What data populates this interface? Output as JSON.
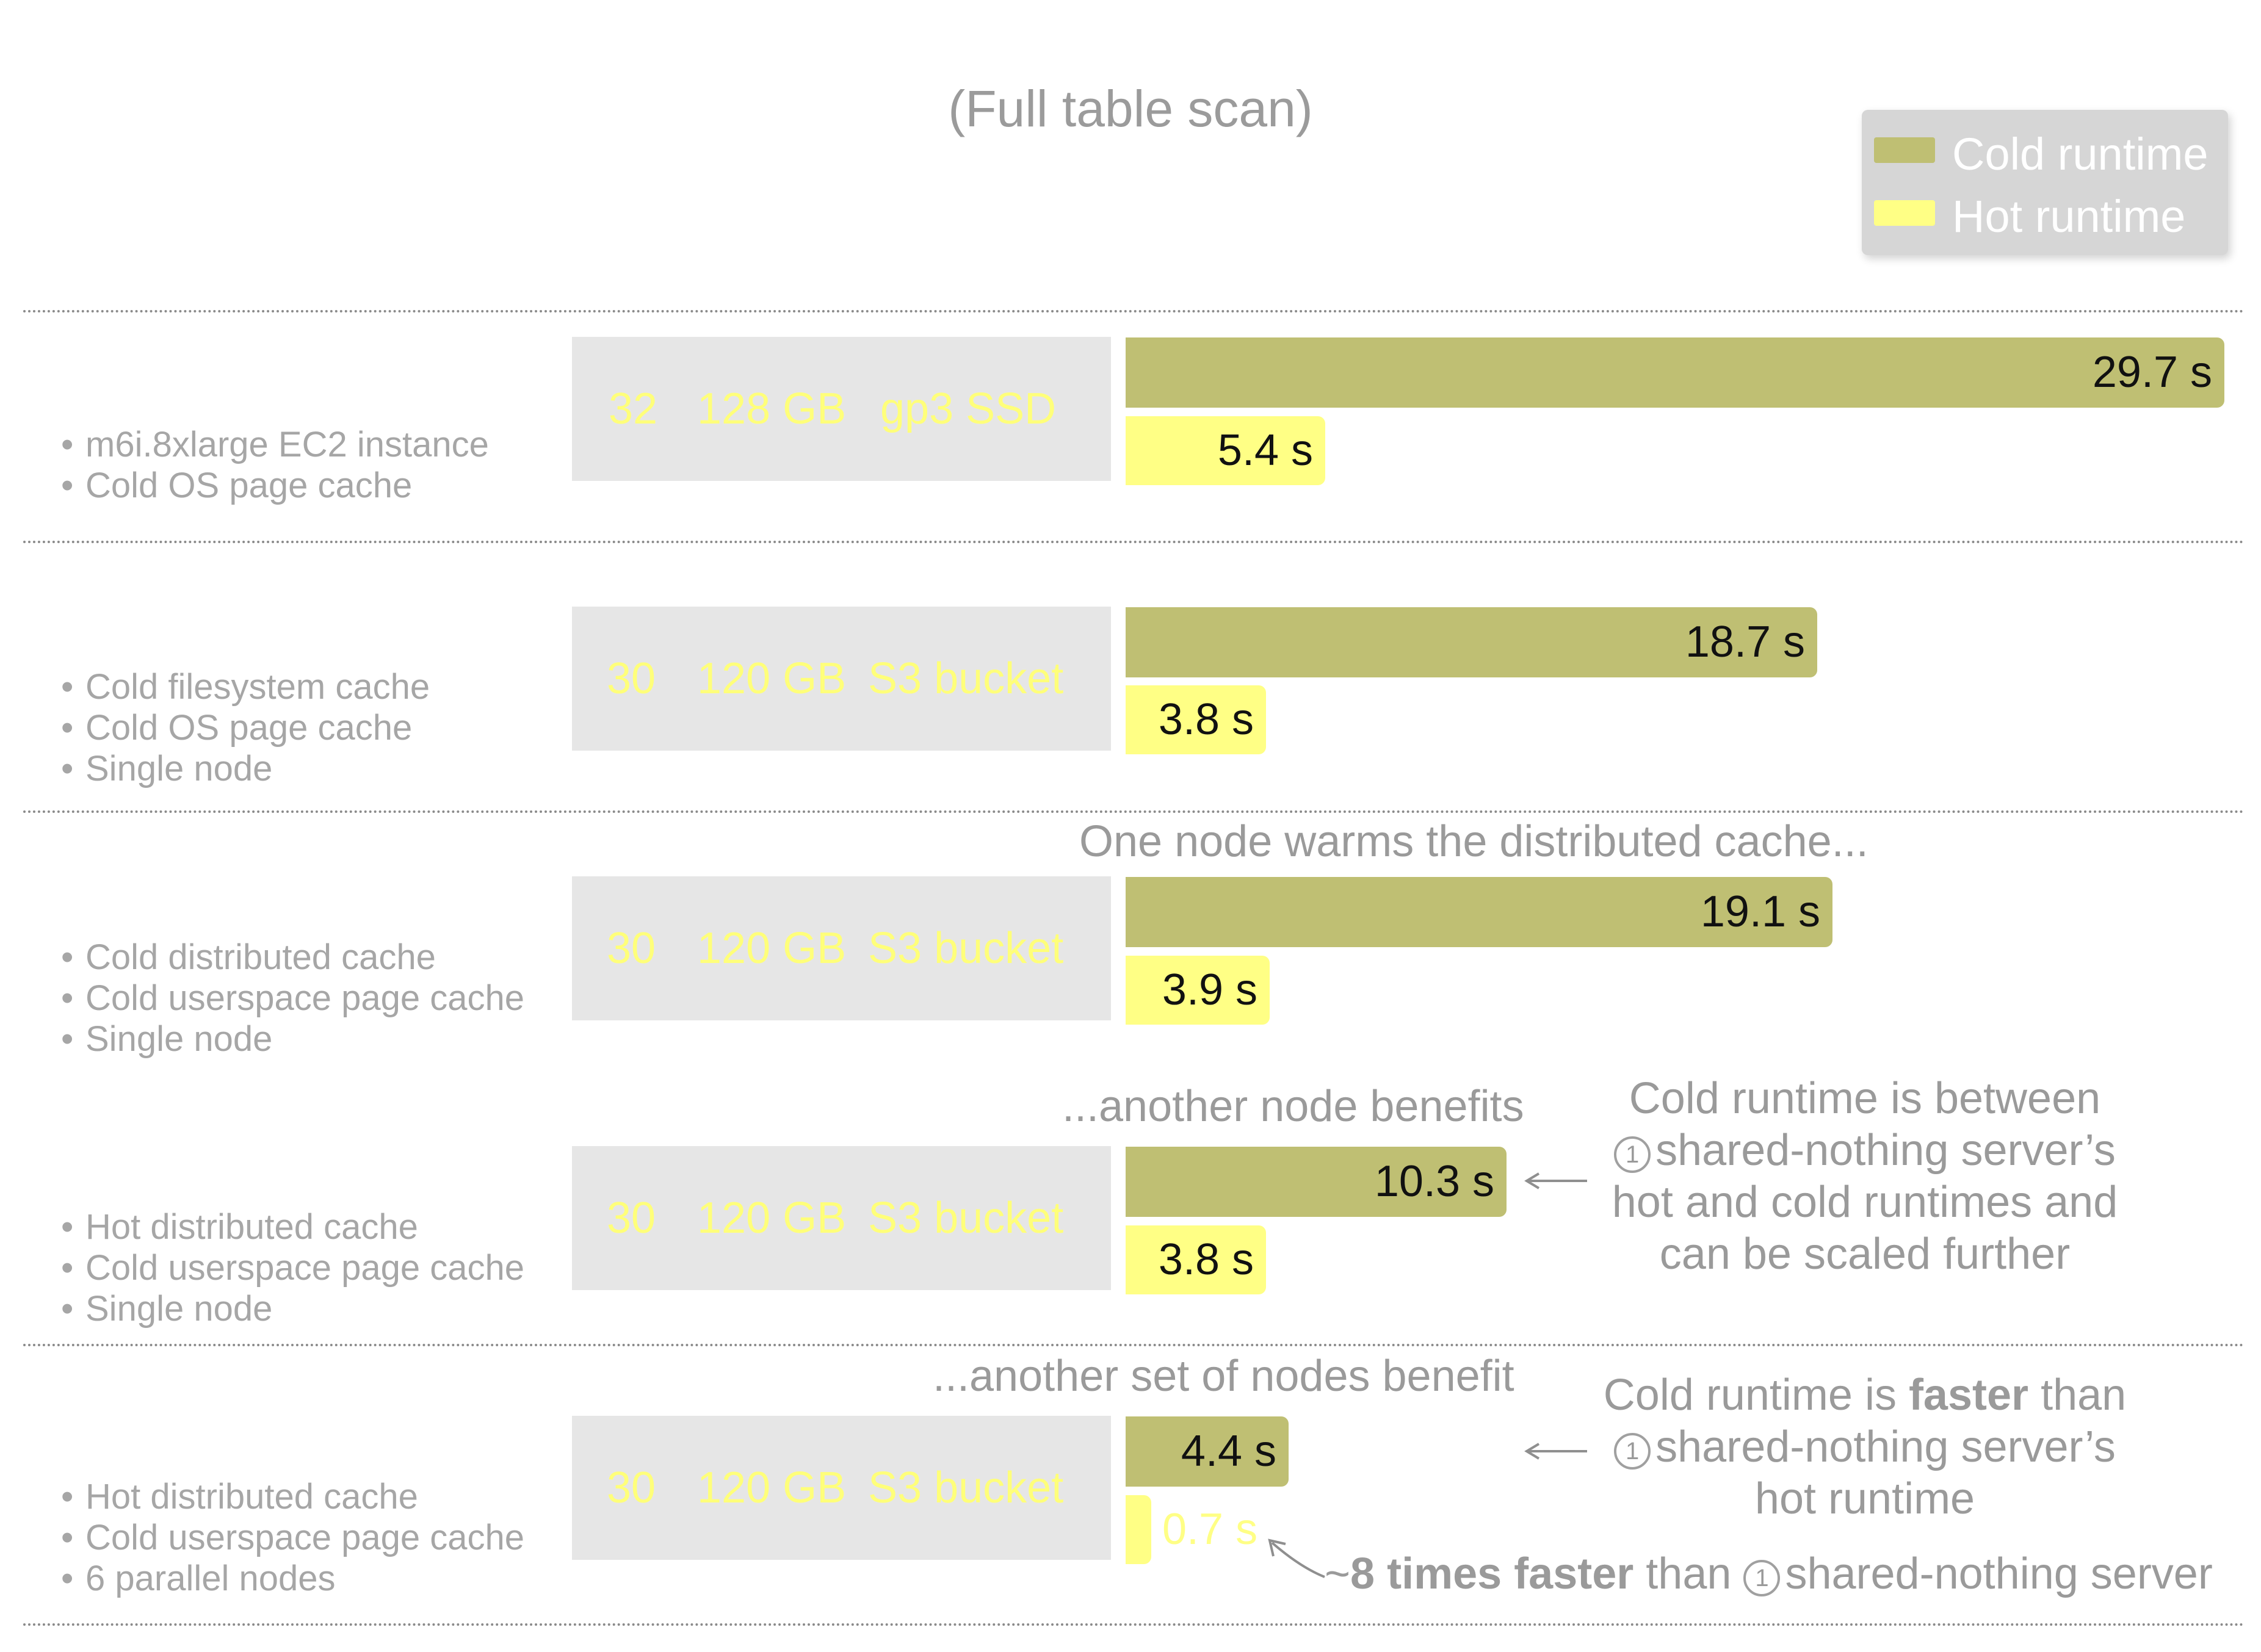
{
  "chart_data": {
    "type": "bar",
    "orientation": "horizontal",
    "subtitle": "(Full table scan)",
    "legend": {
      "placement": "top-right",
      "entries": [
        {
          "name": "Cold runtime",
          "color": "#bfbf73"
        },
        {
          "name": "Hot runtime",
          "color": "#ffff85"
        }
      ]
    },
    "xlim": [
      0,
      29.7
    ],
    "grid": false,
    "rows": [
      {
        "bullets": [
          "m6i.8xlarge EC2 instance",
          "Cold OS page cache"
        ],
        "vcpus": "32",
        "memory": "128 GB",
        "storage": "gp3 SSD",
        "cold": 29.7,
        "hot": 5.4,
        "cold_label": "29.7 s",
        "hot_label": "5.4 s"
      },
      {
        "bullets": [
          "Cold filesystem cache",
          "Cold OS page cache",
          "Single node"
        ],
        "vcpus": "30",
        "memory": "120 GB",
        "storage": "S3 bucket",
        "cold": 18.7,
        "hot": 3.8,
        "cold_label": "18.7 s",
        "hot_label": "3.8 s"
      },
      {
        "bullets": [
          "Cold distributed cache",
          "Cold userspace page cache",
          "Single node"
        ],
        "vcpus": "30",
        "memory": "120 GB",
        "storage": "S3 bucket",
        "cold": 19.1,
        "hot": 3.9,
        "cold_label": "19.1 s",
        "hot_label": "3.9 s"
      },
      {
        "bullets": [
          "Hot distributed cache",
          "Cold userspace page cache",
          "Single node"
        ],
        "vcpus": "30",
        "memory": "120 GB",
        "storage": "S3 bucket",
        "cold": 10.3,
        "hot": 3.8,
        "cold_label": "10.3 s",
        "hot_label": "3.8 s"
      },
      {
        "bullets": [
          "Hot distributed cache",
          "Cold userspace page cache",
          "6 parallel nodes"
        ],
        "vcpus": "30",
        "memory": "120 GB",
        "storage": "S3 bucket",
        "cold": 4.4,
        "hot": 0.7,
        "cold_label": "4.4 s",
        "hot_label": "0.7 s"
      }
    ],
    "annotations": {
      "one_node": "One node warms the distributed cache...",
      "another_node": "...another node benefits",
      "another_set": "...another set of nodes benefit",
      "circle_ref": "1",
      "between": {
        "line1": "Cold runtime is between",
        "line2": "shared-nothing server’s",
        "line3": "hot and cold runtimes and",
        "line4": "can be scaled further"
      },
      "faster": {
        "line1_pre": "Cold runtime is ",
        "line1_bold": "faster",
        "line1_post": " than",
        "line2": "shared-nothing server’s",
        "line3": "hot runtime"
      },
      "times_faster": {
        "pre": "~",
        "bold": "8 times faster",
        "mid": " than ",
        "post": "shared-nothing server"
      }
    }
  }
}
